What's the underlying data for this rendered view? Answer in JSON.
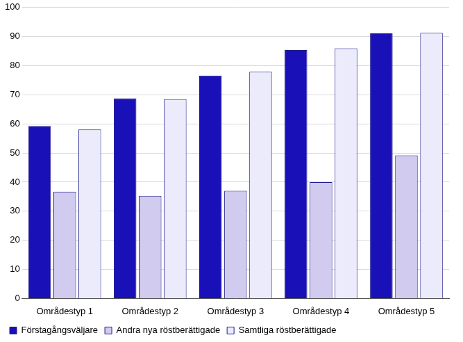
{
  "chart_data": {
    "type": "bar",
    "categories": [
      "Områdestyp 1",
      "Områdestyp 2",
      "Områdestyp 3",
      "Områdestyp 4",
      "Områdestyp 5"
    ],
    "series": [
      {
        "name": "Förstagångsväljare",
        "color": "#1a10b8",
        "values": [
          59.3,
          68.8,
          76.6,
          85.4,
          91.1
        ]
      },
      {
        "name": "Andra nya röstberättigade",
        "color": "#d0cbef",
        "values": [
          36.7,
          35.3,
          37.0,
          40.0,
          49.2
        ]
      },
      {
        "name": "Samtliga röstberättigade",
        "color": "#ecebfb",
        "values": [
          58.1,
          68.5,
          77.9,
          86.0,
          91.3
        ]
      }
    ],
    "ylim": [
      0,
      100
    ],
    "yticks": [
      0,
      10,
      20,
      30,
      40,
      50,
      60,
      70,
      80,
      90,
      100
    ],
    "grid": true,
    "legend": "bottom"
  }
}
